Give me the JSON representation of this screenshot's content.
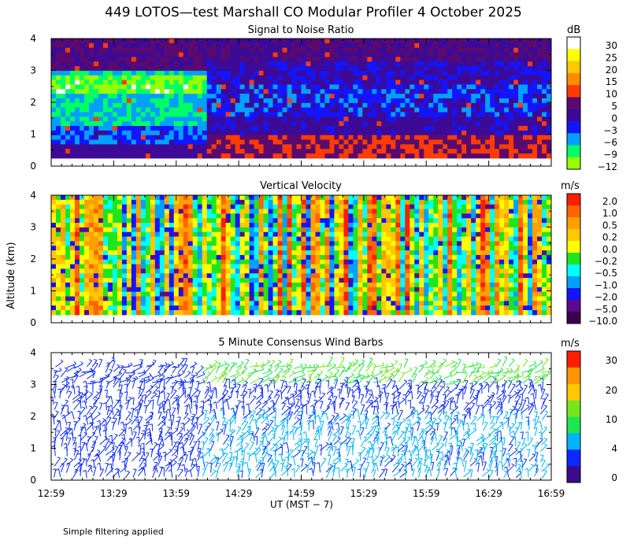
{
  "title": "449 LOTOS—test Marshall CO Modular Profiler  4 October 2025",
  "footer_note": "Simple filtering applied",
  "colors": {
    "axis": "#000000",
    "background": "#ffffff"
  },
  "chart_data": [
    {
      "type": "heatmap",
      "title": "Signal to Noise Ratio",
      "unit": "dB",
      "ylabel": "Altitude (km)",
      "xlabel": "UT  (MST − 7)",
      "x_ticks": [
        "12:59",
        "13:29",
        "13:59",
        "14:29",
        "14:59",
        "15:29",
        "15:59",
        "16:29",
        "16:59"
      ],
      "y_ticks": [
        0,
        1,
        2,
        3,
        4
      ],
      "ylim": [
        0,
        4
      ],
      "data_altitude_range_km": [
        0.25,
        4.0
      ],
      "colorbar": {
        "labels": [
          "30",
          "25",
          "20",
          "15",
          "10",
          "5",
          "0",
          "−3",
          "−6",
          "−9",
          "−12"
        ],
        "colors": [
          "#ffffff",
          "#ffff00",
          "#ffc800",
          "#ff8c00",
          "#ff3c00",
          "#5a0a6e",
          "#3c0a96",
          "#1414ff",
          "#00a0ff",
          "#00ff64",
          "#96ff00"
        ]
      }
    },
    {
      "type": "heatmap",
      "title": "Vertical Velocity",
      "unit": "m/s",
      "ylabel": "Altitude (km)",
      "x_ticks": [
        "12:59",
        "13:29",
        "13:59",
        "14:29",
        "14:59",
        "15:29",
        "15:59",
        "16:29",
        "16:59"
      ],
      "y_ticks": [
        0,
        1,
        2,
        3,
        4
      ],
      "ylim": [
        0,
        4
      ],
      "data_altitude_range_km": [
        0.25,
        4.0
      ],
      "colorbar": {
        "labels": [
          "2.0",
          "1.0",
          "0.5",
          "0.2",
          "0.0",
          "−0.2",
          "−0.5",
          "−1.0",
          "−2.0",
          "−5.0",
          "−10.0"
        ],
        "colors": [
          "#ff1e00",
          "#ff6400",
          "#ffa000",
          "#ffc800",
          "#ffff00",
          "#1ee61e",
          "#00ffff",
          "#00a0ff",
          "#1414ff",
          "#5a0a8c",
          "#3c0050"
        ]
      }
    },
    {
      "type": "wind_barbs",
      "title": "5 Minute Consensus Wind Barbs",
      "unit": "m/s",
      "ylabel": "Altitude (km)",
      "xlabel": "UT  (MST − 7)",
      "x_ticks": [
        "12:59",
        "13:29",
        "13:59",
        "14:29",
        "14:59",
        "15:29",
        "15:59",
        "16:29",
        "16:59"
      ],
      "y_ticks": [
        0,
        1,
        2,
        3,
        4
      ],
      "ylim": [
        0,
        4
      ],
      "colorbar": {
        "labels": [
          "30",
          "20",
          "10",
          "4",
          "0"
        ],
        "colors": [
          "#ff1e00",
          "#ff9600",
          "#ffc800",
          "#78e61e",
          "#1ee650",
          "#00b4ff",
          "#0a28ff",
          "#3c0a8c"
        ]
      }
    }
  ]
}
